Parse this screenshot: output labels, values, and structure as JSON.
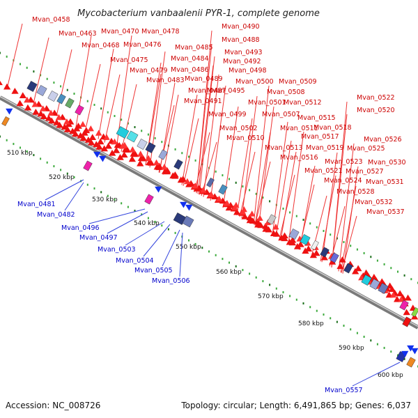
{
  "title": "Mycobacterium vanbaalenii PYR-1, complete genome",
  "footer": {
    "accession": "Accession: NC_008726",
    "topology": "Topology: circular; Length: 6,491,865 bp; Genes: 6,037"
  },
  "ticks": [
    "510 kbp",
    "520 kbp",
    "530 kbp",
    "540 kbp",
    "550 kbp",
    "560 kbp",
    "570 kbp",
    "580 kbp",
    "590 kbp",
    "600 kbp"
  ],
  "top_labels": [
    "Mvan_0458",
    "Mvan_0463",
    "Mvan_0470",
    "Mvan_0478",
    "Mvan_0468",
    "Mvan_0476",
    "Mvan_0490",
    "Mvan_0488",
    "Mvan_0485",
    "Mvan_0493",
    "Mvan_0475",
    "Mvan_0484",
    "Mvan_0492",
    "Mvan_0479",
    "Mvan_0486",
    "Mvan_0498",
    "Mvan_0483",
    "Mvan_0489",
    "Mvan_0500",
    "Mvan_0509",
    "Mvan_0487",
    "Mvan_0495",
    "Mvan_0508",
    "Mvan_0491",
    "Mvan_0501",
    "Mvan_0512",
    "Mvan_0522",
    "Mvan_0499",
    "Mvan_0507",
    "Mvan_0520",
    "Mvan_0502",
    "Mvan_0511",
    "Mvan_0515",
    "Mvan_0510",
    "Mvan_0517",
    "Mvan_0518",
    "Mvan_0513",
    "Mvan_0519",
    "Mvan_0525",
    "Mvan_0526",
    "Mvan_0516",
    "Mvan_0523",
    "Mvan_0530",
    "Mvan_0521",
    "Mvan_0527",
    "Mvan_0524",
    "Mvan_0531",
    "Mvan_0528",
    "Mvan_0532",
    "Mvan_0537"
  ],
  "bottom_labels": [
    "Mvan_0481",
    "Mvan_0482",
    "Mvan_0496",
    "Mvan_0497",
    "Mvan_0503",
    "Mvan_0504",
    "Mvan_0505",
    "Mvan_0506",
    "Mvan_0557"
  ]
}
